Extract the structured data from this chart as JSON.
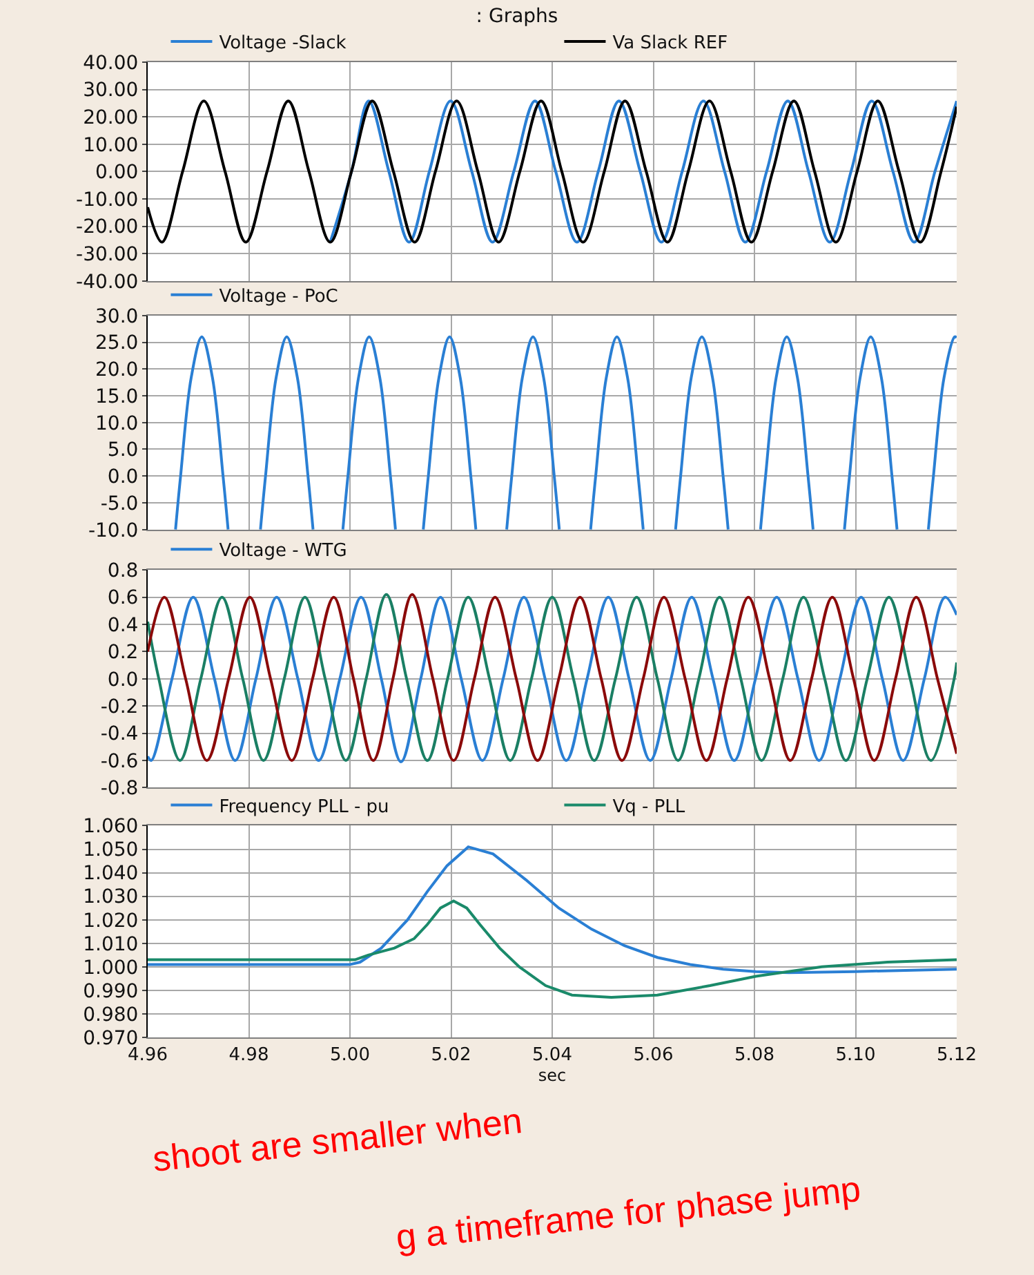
{
  "chart_data": [
    {
      "type": "line",
      "title": ": Graphs",
      "legend": "top",
      "grid": true,
      "tick_labels": "y",
      "xlim": [
        4.96,
        5.12
      ],
      "xticks": [
        {
          "value": 4.96,
          "label": null
        },
        {
          "value": 4.98,
          "label": null
        },
        {
          "value": 5.0,
          "label": null
        },
        {
          "value": 5.02,
          "label": null
        },
        {
          "value": 5.04,
          "label": null
        },
        {
          "value": 5.06,
          "label": null
        },
        {
          "value": 5.08,
          "label": null
        },
        {
          "value": 5.1,
          "label": null
        },
        {
          "value": 5.12,
          "label": null
        }
      ],
      "ylim": [
        -40,
        40
      ],
      "yticks": [
        {
          "value": -40,
          "label": "-40.00"
        },
        {
          "value": -30,
          "label": "-30.00"
        },
        {
          "value": -20,
          "label": "-20.00"
        },
        {
          "value": -10,
          "label": "-10.00"
        },
        {
          "value": 0,
          "label": "0.00"
        },
        {
          "value": 10,
          "label": "10.00"
        },
        {
          "value": 20,
          "label": "20.00"
        },
        {
          "value": 30,
          "label": "30.00"
        },
        {
          "value": 40,
          "label": "40.00"
        }
      ],
      "series": [
        {
          "name": "Voltage -Slack",
          "color": "#2a7fd4",
          "x": [
            4.9961,
            5.0003,
            5.0037,
            5.0077,
            5.0117,
            5.0157,
            5.0199,
            5.0241,
            5.0282,
            5.0324,
            5.0366,
            5.0407,
            5.0449,
            5.0491,
            5.0532,
            5.0574,
            5.0616,
            5.0657,
            5.0699,
            5.0741,
            5.0782,
            5.0824,
            5.0866,
            5.0907,
            5.0949,
            5.0991,
            5.1032,
            5.1074,
            5.1116,
            5.1157,
            5.12
          ],
          "values": [
            -25.8,
            0,
            25.8,
            0,
            -25.8,
            0,
            25.8,
            0,
            -25.8,
            0,
            25.8,
            0,
            -25.8,
            0,
            25.8,
            0,
            -25.8,
            0,
            25.8,
            0,
            -25.8,
            0,
            25.8,
            0,
            -25.8,
            0,
            25.8,
            0,
            -25.8,
            0,
            25.8
          ]
        },
        {
          "name": "Va Slack REF",
          "color": "#000000",
          "x": [
            4.96,
            4.9628,
            4.9669,
            4.9711,
            4.9753,
            4.9794,
            4.9836,
            4.9878,
            4.9919,
            4.9961,
            5.0003,
            5.0044,
            5.0086,
            5.0128,
            5.0169,
            5.0211,
            5.0253,
            5.0294,
            5.0336,
            5.0378,
            5.0419,
            5.0461,
            5.0503,
            5.0544,
            5.0586,
            5.0628,
            5.0669,
            5.0711,
            5.0753,
            5.0794,
            5.0836,
            5.0878,
            5.0919,
            5.0961,
            5.1003,
            5.1044,
            5.1086,
            5.1128,
            5.1169,
            5.12
          ],
          "values": [
            -13,
            -25.8,
            0,
            25.8,
            0,
            -25.8,
            0,
            25.8,
            0,
            -25.8,
            0,
            25.8,
            0,
            -25.8,
            0,
            25.8,
            0,
            -25.8,
            0,
            25.8,
            0,
            -25.8,
            0,
            25.8,
            0,
            -25.8,
            0,
            25.8,
            0,
            -25.8,
            0,
            25.8,
            0,
            -25.8,
            0,
            25.8,
            0,
            -25.8,
            0,
            23.7
          ]
        }
      ]
    },
    {
      "type": "line",
      "legend": "top",
      "grid": true,
      "tick_labels": "y",
      "xlim": [
        4.96,
        5.12
      ],
      "xticks": [
        {
          "value": 4.96,
          "label": null
        },
        {
          "value": 4.98,
          "label": null
        },
        {
          "value": 5.0,
          "label": null
        },
        {
          "value": 5.02,
          "label": null
        },
        {
          "value": 5.04,
          "label": null
        },
        {
          "value": 5.06,
          "label": null
        },
        {
          "value": 5.08,
          "label": null
        },
        {
          "value": 5.1,
          "label": null
        },
        {
          "value": 5.12,
          "label": null
        }
      ],
      "ylim": [
        -10,
        30
      ],
      "yticks": [
        {
          "value": -10,
          "label": "-10.0"
        },
        {
          "value": -5,
          "label": "-5.0"
        },
        {
          "value": 0,
          "label": "0.0"
        },
        {
          "value": 5,
          "label": "5.0"
        },
        {
          "value": 10,
          "label": "10.0"
        },
        {
          "value": 15,
          "label": "15.0"
        },
        {
          "value": 20,
          "label": "20.0"
        },
        {
          "value": 25,
          "label": "25.0"
        },
        {
          "value": 30,
          "label": "30.0"
        }
      ],
      "series": [
        {
          "name": "Voltage - PoC",
          "color": "#2a7fd4",
          "x": [
            4.9655,
            4.9665,
            4.9686,
            4.9707,
            4.9728,
            4.9749,
            4.9759,
            4.9791,
            4.9823,
            4.9833,
            4.9854,
            4.9875,
            4.9896,
            4.9917,
            4.9927,
            4.9957,
            4.9986,
            4.9996,
            5.0017,
            5.0038,
            5.0059,
            5.008,
            5.009,
            5.0118,
            5.0145,
            5.0155,
            5.0176,
            5.0197,
            5.0218,
            5.0239,
            5.0249,
            5.028,
            5.031,
            5.032,
            5.0341,
            5.0362,
            5.0383,
            5.0404,
            5.0414,
            5.0445,
            5.0476,
            5.0486,
            5.0507,
            5.0528,
            5.0549,
            5.057,
            5.058,
            5.0612,
            5.0644,
            5.0654,
            5.0675,
            5.0696,
            5.0717,
            5.0738,
            5.0748,
            5.078,
            5.0812,
            5.0822,
            5.0843,
            5.0864,
            5.0885,
            5.0906,
            5.0916,
            5.0947,
            5.0978,
            5.0988,
            5.1009,
            5.103,
            5.1051,
            5.1072,
            5.1082,
            5.1113,
            5.1144,
            5.1154,
            5.1175,
            5.1196,
            5.12
          ],
          "values": [
            -10,
            0,
            18.4,
            26,
            18.4,
            0,
            -10,
            null,
            -10,
            0,
            18.4,
            26,
            18.4,
            0,
            -10,
            null,
            -10,
            0,
            18.4,
            26,
            18.4,
            0,
            -10,
            null,
            -10,
            0,
            18.4,
            26,
            18.4,
            0,
            -10,
            null,
            -10,
            0,
            18.4,
            26,
            18.4,
            0,
            -10,
            null,
            -10,
            0,
            18.4,
            26,
            18.4,
            0,
            -10,
            null,
            -10,
            0,
            18.4,
            26,
            18.4,
            0,
            -10,
            null,
            -10,
            0,
            18.4,
            26,
            18.4,
            0,
            -10,
            null,
            -10,
            0,
            18.4,
            26,
            18.4,
            0,
            -10,
            null,
            -10,
            0,
            18.4,
            26,
            25.9
          ]
        }
      ]
    },
    {
      "type": "line",
      "legend": "top",
      "grid": true,
      "tick_labels": "y",
      "xlim": [
        4.96,
        5.12
      ],
      "xticks": [
        {
          "value": 4.96,
          "label": null
        },
        {
          "value": 4.98,
          "label": null
        },
        {
          "value": 5.0,
          "label": null
        },
        {
          "value": 5.02,
          "label": null
        },
        {
          "value": 5.04,
          "label": null
        },
        {
          "value": 5.06,
          "label": null
        },
        {
          "value": 5.08,
          "label": null
        },
        {
          "value": 5.1,
          "label": null
        },
        {
          "value": 5.12,
          "label": null
        }
      ],
      "ylim": [
        -0.8,
        0.8
      ],
      "yticks": [
        -0.8,
        -0.6,
        -0.4,
        -0.2,
        {
          "value": 0,
          "label": "0.0"
        },
        0.2,
        0.4,
        0.6,
        0.8
      ],
      "series": [
        {
          "name": "Voltage - WTG",
          "color": "#2a7fd4",
          "x": [
            4.96,
            4.9607,
            4.9648,
            4.969,
            4.9732,
            4.9773,
            4.9814,
            4.9855,
            4.9897,
            4.9938,
            4.998,
            5.0022,
            5.0062,
            5.0101,
            5.014,
            5.0179,
            5.022,
            5.0262,
            5.0303,
            5.0344,
            5.0386,
            5.0428,
            5.0469,
            5.0511,
            5.0552,
            5.0594,
            5.0635,
            5.0676,
            5.0718,
            5.076,
            5.0802,
            5.0844,
            5.0886,
            5.0928,
            5.0969,
            5.1011,
            5.1053,
            5.1094,
            5.1136,
            5.1177,
            5.12
          ],
          "values": [
            -0.57,
            -0.6,
            0,
            0.6,
            0,
            -0.6,
            0,
            0.6,
            0,
            -0.6,
            0,
            0.6,
            0,
            -0.61,
            0,
            0.6,
            0,
            -0.6,
            0,
            0.6,
            0,
            -0.6,
            0,
            0.6,
            0,
            -0.6,
            0,
            0.6,
            0,
            -0.6,
            0,
            0.6,
            0,
            -0.6,
            0,
            0.6,
            0,
            -0.6,
            0,
            0.6,
            0.47
          ]
        },
        {
          "color": "#1a7f64",
          "x": [
            4.96,
            4.9622,
            4.9664,
            4.9705,
            4.9747,
            4.9788,
            4.9829,
            4.987,
            4.9911,
            4.9951,
            4.9992,
            5.0032,
            5.0072,
            5.0112,
            5.0153,
            5.0193,
            5.0234,
            5.0276,
            5.0317,
            5.0359,
            5.04,
            5.0442,
            5.0483,
            5.0525,
            5.0567,
            5.0608,
            5.0649,
            5.069,
            5.0731,
            5.0773,
            5.0814,
            5.0856,
            5.0897,
            5.0939,
            5.0981,
            5.1023,
            5.1066,
            5.1108,
            5.1149,
            5.1195,
            5.12
          ],
          "values": [
            0.42,
            0,
            -0.6,
            0,
            0.6,
            0,
            -0.6,
            0,
            0.6,
            0,
            -0.6,
            0,
            0.62,
            0,
            -0.6,
            0,
            0.6,
            0,
            -0.6,
            0,
            0.6,
            0,
            -0.6,
            0,
            0.6,
            0,
            -0.6,
            0,
            0.6,
            0,
            -0.6,
            0,
            0.6,
            0,
            -0.6,
            0,
            0.6,
            0,
            -0.6,
            0,
            0.12
          ]
        },
        {
          "color": "#8b0a0a",
          "x": [
            4.96,
            4.9633,
            4.9675,
            4.9717,
            4.976,
            4.9802,
            4.9843,
            4.9885,
            4.9926,
            4.9968,
            5.0007,
            5.0046,
            5.0085,
            5.0123,
            5.0164,
            5.0205,
            5.0246,
            5.0287,
            5.0329,
            5.0371,
            5.0413,
            5.0455,
            5.0497,
            5.0538,
            5.058,
            5.0621,
            5.0663,
            5.0705,
            5.0746,
            5.0788,
            5.083,
            5.0871,
            5.0913,
            5.0954,
            5.0996,
            5.1037,
            5.1079,
            5.112,
            5.1162,
            5.12
          ],
          "values": [
            0.2,
            0.6,
            0,
            -0.6,
            0,
            0.6,
            0,
            -0.6,
            0,
            0.6,
            0,
            -0.6,
            0,
            0.62,
            0,
            -0.6,
            0,
            0.6,
            0,
            -0.6,
            0,
            0.6,
            0,
            -0.6,
            0,
            0.6,
            0,
            -0.6,
            0,
            0.6,
            0,
            -0.6,
            0,
            0.6,
            0,
            -0.6,
            0,
            0.6,
            0,
            -0.55
          ]
        }
      ]
    },
    {
      "type": "line",
      "legend": "top",
      "grid": true,
      "xlabel": "sec",
      "xlim": [
        4.96,
        5.12
      ],
      "xticks": [
        4.96,
        4.98,
        {
          "value": 5.0,
          "label": "5.00"
        },
        5.02,
        5.04,
        5.06,
        5.08,
        {
          "value": 5.1,
          "label": "5.10"
        },
        5.12
      ],
      "ylim": [
        0.97,
        1.06
      ],
      "yticks": [
        {
          "value": 0.97,
          "label": "0.970"
        },
        {
          "value": 0.98,
          "label": "0.980"
        },
        {
          "value": 0.99,
          "label": "0.990"
        },
        {
          "value": 1.0,
          "label": "1.000"
        },
        {
          "value": 1.01,
          "label": "1.010"
        },
        {
          "value": 1.02,
          "label": "1.020"
        },
        {
          "value": 1.03,
          "label": "1.030"
        },
        {
          "value": 1.04,
          "label": "1.040"
        },
        {
          "value": 1.05,
          "label": "1.050"
        },
        {
          "value": 1.06,
          "label": "1.060"
        }
      ],
      "annotations": [
        "shoot are smaller when",
        "g a timeframe for phase jump"
      ],
      "series": [
        {
          "name": "Frequency PLL - pu",
          "color": "#2a7fd4",
          "x": [
            4.96,
            5.0,
            5.002,
            5.0062,
            5.0114,
            5.0153,
            5.0192,
            5.0234,
            5.0283,
            5.0348,
            5.0413,
            5.0478,
            5.0543,
            5.0608,
            5.0673,
            5.0738,
            5.0803,
            5.0868,
            5.0998,
            5.12
          ],
          "values": [
            1.001,
            1.001,
            1.002,
            1.008,
            1.02,
            1.032,
            1.043,
            1.051,
            1.048,
            1.037,
            1.025,
            1.016,
            1.009,
            1.004,
            1.001,
            0.999,
            0.998,
            0.9975,
            0.998,
            0.999
          ]
        },
        {
          "name": "Vq - PLL",
          "color": "#1a8a6a",
          "x": [
            4.96,
            5.001,
            5.0036,
            5.0088,
            5.0127,
            5.0153,
            5.0179,
            5.0205,
            5.0231,
            5.0257,
            5.0296,
            5.0335,
            5.0387,
            5.0439,
            5.0517,
            5.0608,
            5.0712,
            5.0803,
            5.0933,
            5.1063,
            5.12
          ],
          "values": [
            1.003,
            1.003,
            1.005,
            1.008,
            1.012,
            1.018,
            1.025,
            1.028,
            1.025,
            1.018,
            1.008,
            1.0,
            0.992,
            0.988,
            0.987,
            0.988,
            0.992,
            0.996,
            1.0,
            1.002,
            1.003
          ]
        }
      ]
    }
  ]
}
